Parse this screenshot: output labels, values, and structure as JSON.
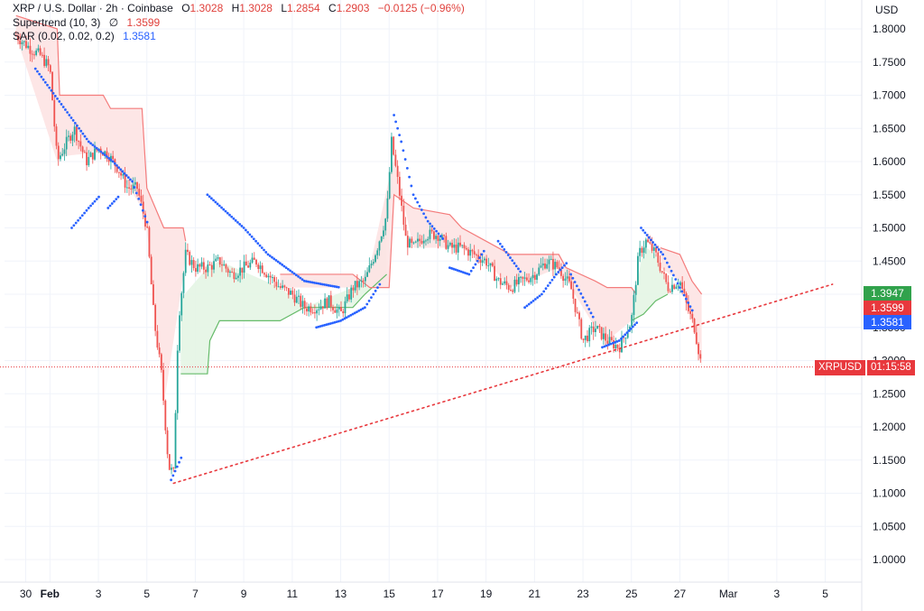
{
  "legend": {
    "title": "XRP / U.S. Dollar · 2h · Coinbase",
    "open_key": "O",
    "open": "1.3028",
    "high_key": "H",
    "high": "1.3028",
    "low_key": "L",
    "low": "1.2854",
    "close_key": "C",
    "close": "1.2903",
    "change": "−0.0125 (−0.96%)",
    "supertrend_label": "Supertrend (10, 3)",
    "supertrend_icon": "∅",
    "supertrend_value": "1.3599",
    "sar_label": "SAR (0.02, 0.02, 0.2)",
    "sar_value": "1.3581"
  },
  "currency": "USD",
  "price_badges": {
    "upper": {
      "value": "1.3947",
      "color": "#31a24c"
    },
    "supertrend": {
      "value": "1.3599",
      "color": "#e8383d"
    },
    "sar": {
      "value": "1.3581",
      "color": "#2962ff"
    }
  },
  "symbol_badge": {
    "symbol": "XRPUSD",
    "countdown": "01:15:58",
    "color": "#e8383d"
  },
  "colors": {
    "up": "#26a69a",
    "down": "#ef5350",
    "supertrend_down": "#f47c7c",
    "supertrend_up": "#66bb6a",
    "fill_down": "#fde3e3",
    "fill_up": "#e4f5e4",
    "sar": "#2962ff",
    "trendline": "#e8383d"
  },
  "chart_data": {
    "type": "candlestick",
    "symbol": "XRP / U.S. Dollar",
    "interval": "2h",
    "exchange": "Coinbase",
    "y_axis": {
      "min": 0.97,
      "max": 1.82,
      "ticks": [
        "1.0000",
        "1.0500",
        "1.1000",
        "1.1500",
        "1.2000",
        "1.2500",
        "1.3000",
        "1.3500",
        "1.4000",
        "1.4500",
        "1.5000",
        "1.5500",
        "1.6000",
        "1.6500",
        "1.7000",
        "1.7500",
        "1.8000"
      ]
    },
    "x_axis": {
      "ticks": [
        {
          "label": "30",
          "day": 0
        },
        {
          "label": "Feb",
          "day": 1
        },
        {
          "label": "3",
          "day": 3
        },
        {
          "label": "5",
          "day": 5
        },
        {
          "label": "7",
          "day": 7
        },
        {
          "label": "9",
          "day": 9
        },
        {
          "label": "11",
          "day": 11
        },
        {
          "label": "13",
          "day": 13
        },
        {
          "label": "15",
          "day": 15
        },
        {
          "label": "17",
          "day": 17
        },
        {
          "label": "19",
          "day": 19
        },
        {
          "label": "21",
          "day": 21
        },
        {
          "label": "23",
          "day": 23
        },
        {
          "label": "25",
          "day": 25
        },
        {
          "label": "27",
          "day": 27
        },
        {
          "label": "Mar",
          "day": 29
        },
        {
          "label": "3",
          "day": 31
        },
        {
          "label": "5",
          "day": 33
        }
      ]
    },
    "price_path": [
      [
        -0.4,
        1.79
      ],
      [
        0.2,
        1.77
      ],
      [
        0.6,
        1.76
      ],
      [
        1.0,
        1.74
      ],
      [
        1.3,
        1.6
      ],
      [
        1.7,
        1.63
      ],
      [
        2.0,
        1.65
      ],
      [
        2.5,
        1.6
      ],
      [
        3.0,
        1.62
      ],
      [
        3.4,
        1.61
      ],
      [
        3.8,
        1.59
      ],
      [
        4.2,
        1.56
      ],
      [
        4.6,
        1.56
      ],
      [
        5.0,
        1.5
      ],
      [
        5.3,
        1.36
      ],
      [
        5.6,
        1.28
      ],
      [
        5.9,
        1.14
      ],
      [
        6.1,
        1.13
      ],
      [
        6.3,
        1.36
      ],
      [
        6.6,
        1.46
      ],
      [
        7.0,
        1.44
      ],
      [
        7.5,
        1.44
      ],
      [
        8.0,
        1.45
      ],
      [
        8.5,
        1.43
      ],
      [
        9.0,
        1.44
      ],
      [
        9.5,
        1.45
      ],
      [
        10.0,
        1.43
      ],
      [
        10.5,
        1.41
      ],
      [
        11.0,
        1.4
      ],
      [
        11.5,
        1.38
      ],
      [
        12.0,
        1.38
      ],
      [
        12.5,
        1.39
      ],
      [
        13.0,
        1.37
      ],
      [
        13.5,
        1.41
      ],
      [
        14.0,
        1.42
      ],
      [
        14.5,
        1.47
      ],
      [
        14.9,
        1.52
      ],
      [
        15.1,
        1.63
      ],
      [
        15.4,
        1.56
      ],
      [
        15.7,
        1.48
      ],
      [
        16.0,
        1.47
      ],
      [
        16.5,
        1.49
      ],
      [
        17.0,
        1.49
      ],
      [
        17.5,
        1.47
      ],
      [
        18.0,
        1.47
      ],
      [
        18.5,
        1.46
      ],
      [
        19.0,
        1.45
      ],
      [
        19.5,
        1.42
      ],
      [
        20.0,
        1.41
      ],
      [
        20.5,
        1.42
      ],
      [
        21.0,
        1.43
      ],
      [
        21.5,
        1.45
      ],
      [
        22.0,
        1.44
      ],
      [
        22.5,
        1.41
      ],
      [
        23.0,
        1.33
      ],
      [
        23.5,
        1.35
      ],
      [
        24.0,
        1.33
      ],
      [
        24.5,
        1.32
      ],
      [
        25.0,
        1.36
      ],
      [
        25.3,
        1.46
      ],
      [
        25.6,
        1.48
      ],
      [
        26.0,
        1.46
      ],
      [
        26.5,
        1.41
      ],
      [
        27.0,
        1.42
      ],
      [
        27.3,
        1.38
      ],
      [
        27.6,
        1.35
      ],
      [
        27.9,
        1.29
      ]
    ],
    "supertrend_segments": [
      {
        "trend": "down",
        "points": [
          [
            -0.4,
            1.82
          ],
          [
            1.3,
            1.8
          ],
          [
            1.4,
            1.7
          ],
          [
            3.2,
            1.7
          ],
          [
            3.5,
            1.68
          ],
          [
            4.8,
            1.68
          ],
          [
            5.0,
            1.56
          ],
          [
            5.7,
            1.5
          ],
          [
            6.5,
            1.5
          ],
          [
            6.6,
            1.48
          ]
        ]
      },
      {
        "trend": "up",
        "points": [
          [
            6.4,
            1.28
          ],
          [
            7.5,
            1.28
          ],
          [
            7.6,
            1.33
          ],
          [
            8.0,
            1.36
          ],
          [
            10.5,
            1.36
          ],
          [
            11.5,
            1.38
          ],
          [
            13.5,
            1.38
          ],
          [
            14.0,
            1.4
          ],
          [
            14.9,
            1.43
          ]
        ]
      },
      {
        "trend": "down",
        "points": [
          [
            10.5,
            1.43
          ],
          [
            13.5,
            1.43
          ],
          [
            14.2,
            1.41
          ],
          [
            15.0,
            1.41
          ],
          [
            15.2,
            1.55
          ],
          [
            16.0,
            1.53
          ],
          [
            17.5,
            1.52
          ],
          [
            18.0,
            1.5
          ],
          [
            19.0,
            1.48
          ],
          [
            20.0,
            1.46
          ],
          [
            22.0,
            1.46
          ],
          [
            22.3,
            1.44
          ],
          [
            23.5,
            1.42
          ],
          [
            24.0,
            1.41
          ],
          [
            25.0,
            1.41
          ],
          [
            25.2,
            1.4
          ]
        ]
      },
      {
        "trend": "up",
        "points": [
          [
            25.0,
            1.36
          ],
          [
            25.5,
            1.37
          ],
          [
            26.0,
            1.39
          ],
          [
            26.5,
            1.4
          ]
        ]
      },
      {
        "trend": "down",
        "points": [
          [
            26.2,
            1.47
          ],
          [
            27.0,
            1.46
          ],
          [
            27.5,
            1.42
          ],
          [
            27.9,
            1.4
          ]
        ]
      }
    ],
    "sar_segments": [
      [
        [
          0.4,
          1.74
        ],
        [
          1.8,
          1.67
        ],
        [
          2.6,
          1.63
        ],
        [
          3.6,
          1.6
        ],
        [
          4.4,
          1.57
        ],
        [
          5.1,
          1.5
        ]
      ],
      [
        [
          1.9,
          1.5
        ],
        [
          2.6,
          1.53
        ],
        [
          3.1,
          1.55
        ]
      ],
      [
        [
          3.4,
          1.53
        ],
        [
          3.9,
          1.55
        ]
      ],
      [
        [
          6.0,
          1.12
        ],
        [
          6.5,
          1.16
        ]
      ],
      [
        [
          7.5,
          1.55
        ],
        [
          9.0,
          1.5
        ],
        [
          10.0,
          1.46
        ],
        [
          11.5,
          1.42
        ],
        [
          13.0,
          1.41
        ]
      ],
      [
        [
          12.0,
          1.35
        ],
        [
          13.0,
          1.36
        ],
        [
          14.0,
          1.38
        ],
        [
          14.7,
          1.42
        ]
      ],
      [
        [
          15.2,
          1.67
        ],
        [
          15.5,
          1.63
        ],
        [
          16.0,
          1.55
        ],
        [
          16.6,
          1.51
        ],
        [
          17.3,
          1.48
        ]
      ],
      [
        [
          17.5,
          1.44
        ],
        [
          18.3,
          1.43
        ],
        [
          19.0,
          1.47
        ]
      ],
      [
        [
          19.5,
          1.48
        ],
        [
          20.5,
          1.43
        ]
      ],
      [
        [
          20.6,
          1.38
        ],
        [
          21.3,
          1.4
        ],
        [
          21.9,
          1.43
        ],
        [
          22.4,
          1.45
        ]
      ],
      [
        [
          22.5,
          1.43
        ],
        [
          23.5,
          1.36
        ]
      ],
      [
        [
          23.8,
          1.32
        ],
        [
          24.5,
          1.33
        ],
        [
          25.3,
          1.36
        ]
      ],
      [
        [
          25.4,
          1.5
        ],
        [
          26.3,
          1.46
        ],
        [
          27.0,
          1.41
        ],
        [
          27.6,
          1.37
        ]
      ]
    ],
    "trendline": {
      "style": "dotted",
      "points": [
        [
          6.1,
          1.115
        ],
        [
          33.3,
          1.415
        ]
      ]
    },
    "last_price_line": {
      "price": 1.2903,
      "style": "dotted"
    },
    "markers": [
      {
        "label": "1.3947",
        "price": 1.3947
      },
      {
        "label": "1.3599",
        "price": 1.3599
      },
      {
        "label": "1.3581",
        "price": 1.3581
      }
    ]
  }
}
